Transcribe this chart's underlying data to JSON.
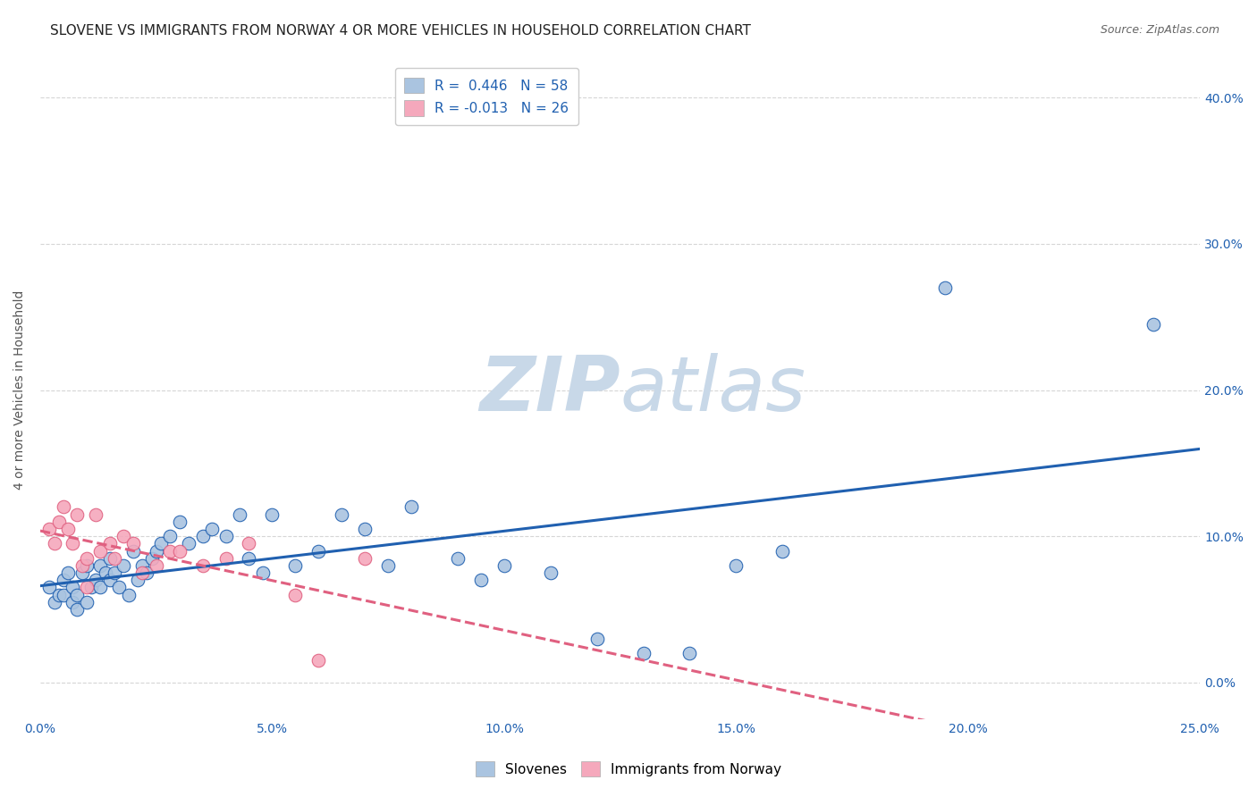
{
  "title": "SLOVENE VS IMMIGRANTS FROM NORWAY 4 OR MORE VEHICLES IN HOUSEHOLD CORRELATION CHART",
  "source": "Source: ZipAtlas.com",
  "ylabel_label": "4 or more Vehicles in Household",
  "xlim": [
    0.0,
    0.25
  ],
  "ylim": [
    -0.025,
    0.425
  ],
  "yticks": [
    0.0,
    0.1,
    0.2,
    0.3,
    0.4
  ],
  "ytick_labels": [
    "0.0%",
    "10.0%",
    "20.0%",
    "30.0%",
    "40.0%"
  ],
  "xticks": [
    0.0,
    0.05,
    0.1,
    0.15,
    0.2,
    0.25
  ],
  "xtick_labels": [
    "0.0%",
    "5.0%",
    "10.0%",
    "15.0%",
    "20.0%",
    "25.0%"
  ],
  "blue_R": 0.446,
  "blue_N": 58,
  "pink_R": -0.013,
  "pink_N": 26,
  "blue_scatter_x": [
    0.002,
    0.003,
    0.004,
    0.005,
    0.005,
    0.006,
    0.007,
    0.007,
    0.008,
    0.008,
    0.009,
    0.01,
    0.01,
    0.011,
    0.012,
    0.013,
    0.013,
    0.014,
    0.015,
    0.015,
    0.016,
    0.017,
    0.018,
    0.019,
    0.02,
    0.021,
    0.022,
    0.023,
    0.024,
    0.025,
    0.026,
    0.028,
    0.03,
    0.032,
    0.035,
    0.037,
    0.04,
    0.043,
    0.045,
    0.048,
    0.05,
    0.055,
    0.06,
    0.065,
    0.07,
    0.075,
    0.08,
    0.09,
    0.095,
    0.1,
    0.11,
    0.12,
    0.13,
    0.14,
    0.15,
    0.16,
    0.195,
    0.24
  ],
  "blue_scatter_y": [
    0.065,
    0.055,
    0.06,
    0.07,
    0.06,
    0.075,
    0.055,
    0.065,
    0.06,
    0.05,
    0.075,
    0.08,
    0.055,
    0.065,
    0.07,
    0.08,
    0.065,
    0.075,
    0.085,
    0.07,
    0.075,
    0.065,
    0.08,
    0.06,
    0.09,
    0.07,
    0.08,
    0.075,
    0.085,
    0.09,
    0.095,
    0.1,
    0.11,
    0.095,
    0.1,
    0.105,
    0.1,
    0.115,
    0.085,
    0.075,
    0.115,
    0.08,
    0.09,
    0.115,
    0.105,
    0.08,
    0.12,
    0.085,
    0.07,
    0.08,
    0.075,
    0.03,
    0.02,
    0.02,
    0.08,
    0.09,
    0.27,
    0.245
  ],
  "pink_scatter_x": [
    0.002,
    0.003,
    0.004,
    0.005,
    0.006,
    0.007,
    0.008,
    0.009,
    0.01,
    0.01,
    0.012,
    0.013,
    0.015,
    0.016,
    0.018,
    0.02,
    0.022,
    0.025,
    0.028,
    0.03,
    0.035,
    0.04,
    0.045,
    0.055,
    0.06,
    0.07
  ],
  "pink_scatter_y": [
    0.105,
    0.095,
    0.11,
    0.12,
    0.105,
    0.095,
    0.115,
    0.08,
    0.085,
    0.065,
    0.115,
    0.09,
    0.095,
    0.085,
    0.1,
    0.095,
    0.075,
    0.08,
    0.09,
    0.09,
    0.08,
    0.085,
    0.095,
    0.06,
    0.015,
    0.085
  ],
  "blue_color": "#aac4e0",
  "pink_color": "#f5a8bc",
  "blue_line_color": "#2060b0",
  "pink_line_color": "#e06080",
  "grid_color": "#cccccc",
  "watermark_zip_color": "#c8d8e8",
  "watermark_atlas_color": "#c8d8e8",
  "background_color": "#ffffff",
  "title_fontsize": 11,
  "axis_label_fontsize": 10,
  "tick_fontsize": 10,
  "legend_fontsize": 11
}
